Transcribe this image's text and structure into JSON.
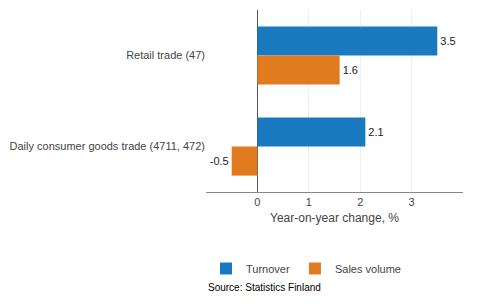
{
  "chart_data": {
    "type": "bar",
    "orientation": "horizontal",
    "categories": [
      "Daily consumer goods trade (4711, 472)",
      "Retail trade (47)"
    ],
    "series": [
      {
        "name": "Turnover",
        "color": "#1a7abf",
        "values": [
          2.1,
          3.5
        ]
      },
      {
        "name": "Sales volume",
        "color": "#e07b20",
        "values": [
          -0.5,
          1.6
        ]
      }
    ],
    "xlabel": "Year-on-year change, %",
    "xlim": [
      -1.0,
      4.0
    ],
    "xticks": [
      0,
      1,
      2,
      3
    ],
    "grid": true,
    "data_labels": true,
    "legend": "bottom",
    "annotations": [
      "Source: Statistics Finland"
    ]
  }
}
